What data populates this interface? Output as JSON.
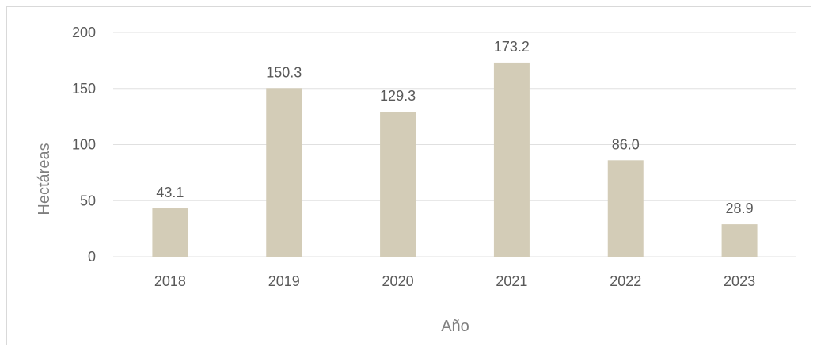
{
  "chart_data": {
    "type": "bar",
    "categories": [
      "2018",
      "2019",
      "2020",
      "2021",
      "2022",
      "2023"
    ],
    "values": [
      43.1,
      150.3,
      129.3,
      173.2,
      86.0,
      28.9
    ],
    "data_labels": [
      "43.1",
      "150.3",
      "129.3",
      "173.2",
      "86.0",
      "28.9"
    ],
    "xlabel": "Año",
    "ylabel": "Hectáreas",
    "ylim": [
      0,
      200
    ],
    "yticks": [
      0,
      50,
      100,
      150,
      200
    ],
    "grid": true,
    "bar_color": "#d3ccb7",
    "grid_color": "#e0e0e0"
  }
}
